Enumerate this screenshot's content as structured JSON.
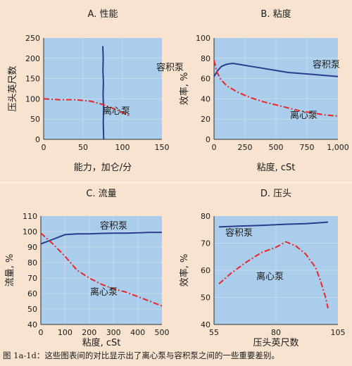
{
  "caption": "图 1a-1d：这些图表间的对比显示出了离心泵与容积泵之间的一些重要差别。",
  "colors": {
    "positive_displacement": "#2b3c8e",
    "centrifugal": "#e8262b",
    "plot_bg": "#a9cdea",
    "page_bg": "#f7e3cf"
  },
  "chart_data": [
    {
      "type": "line",
      "title": "A. 性能",
      "xlabel": "能力，加仑/分",
      "ylabel": "压头英尺数",
      "xlim": [
        0,
        150
      ],
      "ylim": [
        0,
        250
      ],
      "xticks": [
        "0",
        "50",
        "100",
        "150"
      ],
      "yticks": [
        "0",
        "50",
        "100",
        "150",
        "200",
        "250"
      ],
      "series": [
        {
          "name": "容积泵",
          "kind": "positive_displacement",
          "x": [
            75,
            75.5,
            75.2,
            75.8,
            75.4,
            76,
            75.6,
            76.2
          ],
          "y": [
            230,
            200,
            170,
            140,
            110,
            80,
            40,
            0
          ]
        },
        {
          "name": "离心泵",
          "kind": "centrifugal",
          "x": [
            0,
            20,
            40,
            60,
            75,
            90,
            105,
            110
          ],
          "y": [
            100,
            98,
            98,
            94,
            86,
            75,
            62,
            57
          ]
        }
      ]
    },
    {
      "type": "line",
      "title": "B. 粘度",
      "xlabel": "粘度, cSt",
      "ylabel": "效率, %",
      "xlim": [
        0,
        1000
      ],
      "ylim": [
        0,
        100
      ],
      "xticks": [
        "0",
        "250",
        "500",
        "750",
        "1,000"
      ],
      "yticks": [
        "0",
        "20",
        "40",
        "60",
        "80",
        "100"
      ],
      "series": [
        {
          "name": "容积泵",
          "kind": "positive_displacement",
          "x": [
            0,
            30,
            60,
            100,
            150,
            200,
            300,
            400,
            500,
            600,
            700,
            800,
            900,
            1000
          ],
          "y": [
            62,
            68,
            72,
            74,
            75,
            74,
            72,
            70,
            68,
            66,
            65,
            64,
            63,
            62
          ]
        },
        {
          "name": "离心泵",
          "kind": "centrifugal",
          "x": [
            0,
            25,
            50,
            100,
            200,
            300,
            400,
            500,
            600,
            700,
            800,
            900,
            1000
          ],
          "y": [
            78,
            66,
            60,
            53,
            46,
            41,
            37,
            34,
            31,
            28,
            26,
            24,
            23
          ]
        }
      ]
    },
    {
      "type": "line",
      "title": "C. 流量",
      "xlabel": "粘度, cSt",
      "ylabel": "流量, %",
      "xlim": [
        0,
        500
      ],
      "ylim": [
        40,
        110
      ],
      "xticks": [
        "0",
        "100",
        "200",
        "300",
        "400",
        "500"
      ],
      "yticks": [
        "40",
        "50",
        "60",
        "70",
        "80",
        "90",
        "100",
        "110"
      ],
      "series": [
        {
          "name": "容积泵",
          "kind": "positive_displacement",
          "x": [
            0,
            50,
            100,
            150,
            200,
            250,
            300,
            350,
            400,
            450,
            500
          ],
          "y": [
            92,
            95,
            98,
            98.5,
            98.5,
            98.8,
            99,
            99,
            99.2,
            99.5,
            99.5
          ]
        },
        {
          "name": "离心泵",
          "kind": "centrifugal",
          "x": [
            0,
            50,
            100,
            150,
            200,
            250,
            300,
            350,
            400,
            450,
            500
          ],
          "y": [
            99,
            92,
            84,
            75,
            70,
            66,
            63,
            61,
            58,
            55,
            52
          ]
        }
      ]
    },
    {
      "type": "line",
      "title": "D. 压头",
      "xlabel": "压头英尺数",
      "ylabel": "效率, %",
      "xlim": [
        55,
        105
      ],
      "ylim": [
        40,
        80
      ],
      "xticks": [
        "55",
        "80",
        "105"
      ],
      "yticks": [
        "40",
        "50",
        "60",
        "70",
        "80"
      ],
      "series": [
        {
          "name": "容积泵",
          "kind": "positive_displacement",
          "x": [
            57,
            65,
            75,
            85,
            92,
            97,
            100,
            101
          ],
          "y": [
            76,
            76.3,
            76.6,
            77,
            77.2,
            77.5,
            77.7,
            77.8
          ]
        },
        {
          "name": "离心泵",
          "kind": "centrifugal",
          "x": [
            57,
            62,
            68,
            74,
            80,
            84,
            88,
            92,
            96,
            98,
            100,
            101
          ],
          "y": [
            55,
            59,
            63,
            66.5,
            68.5,
            70.5,
            69,
            66,
            61,
            56,
            50,
            46
          ]
        }
      ]
    }
  ]
}
